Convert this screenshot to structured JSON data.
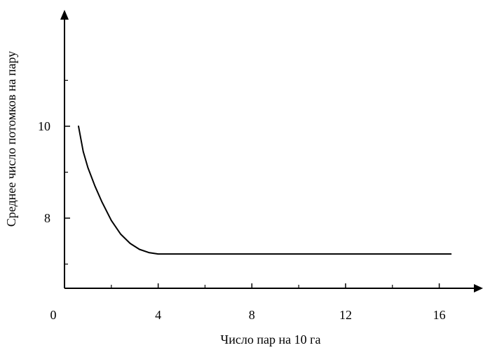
{
  "chart_data": {
    "type": "line",
    "title": "",
    "xlabel": "Число пар на 10 га",
    "ylabel": "Среднее число потомков на пару",
    "xlim": [
      0,
      18
    ],
    "ylim": [
      6.5,
      12.5
    ],
    "x_ticks": [
      {
        "value": 0,
        "label": "0"
      },
      {
        "value": 4,
        "label": "4"
      },
      {
        "value": 8,
        "label": "8"
      },
      {
        "value": 12,
        "label": "12"
      },
      {
        "value": 16,
        "label": "16"
      }
    ],
    "x_minor_ticks": [
      2,
      6,
      10,
      14
    ],
    "y_ticks": [
      {
        "value": 8,
        "label": "8"
      },
      {
        "value": 10,
        "label": "10"
      }
    ],
    "y_minor_ticks": [
      7,
      9,
      11
    ],
    "grid": false,
    "series": [
      {
        "x": [
          0.6,
          0.8,
          1.0,
          1.3,
          1.6,
          2.0,
          2.4,
          2.8,
          3.2,
          3.6,
          4.0,
          8.0,
          12.0,
          16.5
        ],
        "y": [
          10.0,
          9.45,
          9.1,
          8.7,
          8.35,
          7.95,
          7.65,
          7.45,
          7.32,
          7.25,
          7.22,
          7.22,
          7.22,
          7.22
        ]
      }
    ]
  }
}
